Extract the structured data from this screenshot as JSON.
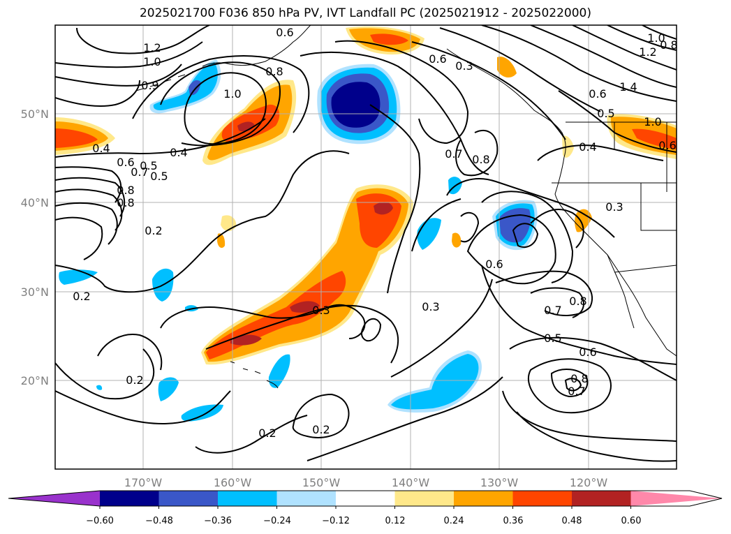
{
  "title": "2025021700 F036 850 hPa PV, IVT Landfall PC (2025021912 - 2025022000)",
  "map": {
    "lon_ticks": [
      -170,
      -160,
      -150,
      -140,
      -130,
      -120
    ],
    "lon_labels": [
      "170°W",
      "160°W",
      "150°W",
      "140°W",
      "130°W",
      "120°W"
    ],
    "lat_ticks": [
      50,
      40,
      30,
      20
    ],
    "lat_labels": [
      "50°N",
      "40°N",
      "30°N",
      "20°N"
    ],
    "lon_range": [
      -180,
      -110
    ],
    "lat_range": [
      10,
      60
    ]
  },
  "colorbar": {
    "levels": [
      "−0.60",
      "−0.48",
      "−0.36",
      "−0.24",
      "−0.12",
      "0.12",
      "0.24",
      "0.36",
      "0.48",
      "0.60"
    ],
    "colors": [
      "#9932cc",
      "#00008b",
      "#3a57c8",
      "#00bfff",
      "#b0e2ff",
      "#ffffff",
      "#ffe88a",
      "#ffa500",
      "#ff4500",
      "#b22222",
      "#ff88aa"
    ]
  },
  "contour_labels": [
    "1.2",
    "1.0",
    "0.9",
    "1.0",
    "0.8",
    "0.6",
    "0.4",
    "0.6",
    "0.7",
    "0.5",
    "0.8",
    "0.4",
    "0.2",
    "0.2",
    "0.2",
    "0.3",
    "0.3",
    "0.2",
    "0.2",
    "0.6",
    "0.3",
    "0.7",
    "0.8",
    "0.6",
    "0.7",
    "0.8",
    "0.5",
    "0.6",
    "0.8",
    "0.7",
    "0.3",
    "0.4",
    "1.4",
    "1.2",
    "1.0",
    "0.8",
    "0.6",
    "0.5",
    "1.0",
    "0.6",
    "0.5",
    "0.8"
  ]
}
